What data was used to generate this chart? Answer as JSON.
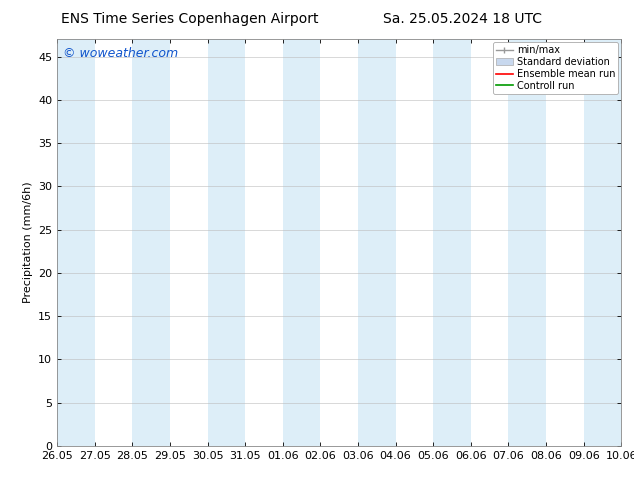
{
  "title_left": "ENS Time Series Copenhagen Airport",
  "title_right": "Sa. 25.05.2024 18 UTC",
  "ylabel": "Precipitation (mm/6h)",
  "watermark": "© woweather.com",
  "watermark_color": "#1155cc",
  "background_color": "#ffffff",
  "plot_bg_color": "#ffffff",
  "ylim": [
    0,
    47
  ],
  "yticks": [
    0,
    5,
    10,
    15,
    20,
    25,
    30,
    35,
    40,
    45
  ],
  "xtick_labels": [
    "26.05",
    "27.05",
    "28.05",
    "29.05",
    "30.05",
    "31.05",
    "01.06",
    "02.06",
    "03.06",
    "04.06",
    "05.06",
    "06.06",
    "07.06",
    "08.06",
    "09.06",
    "10.06"
  ],
  "shade_indices": [
    0,
    2,
    4,
    6,
    8,
    10,
    12,
    14
  ],
  "shade_color": "#ddeef8",
  "legend_labels": [
    "min/max",
    "Standard deviation",
    "Ensemble mean run",
    "Controll run"
  ],
  "legend_colors": [
    "#999999",
    "#c8d8ee",
    "#ff0000",
    "#009900"
  ],
  "font_size": 8,
  "title_font_size": 10,
  "watermark_font_size": 9
}
